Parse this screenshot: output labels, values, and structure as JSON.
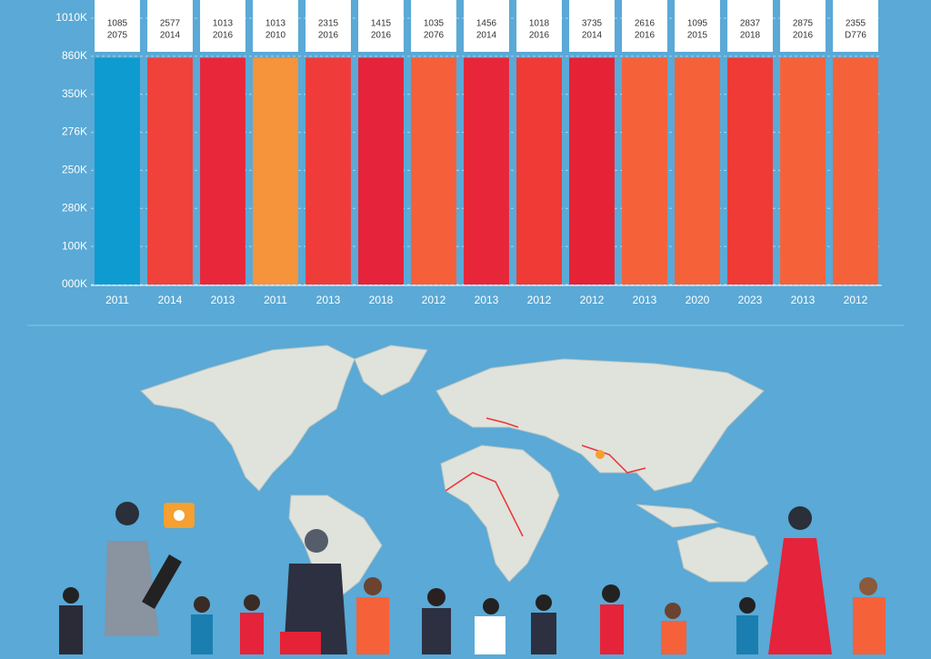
{
  "chart_data": {
    "type": "bar",
    "categories": [
      "2011",
      "2014",
      "2013",
      "2011",
      "2013",
      "2018",
      "2012",
      "2013",
      "2012",
      "2012",
      "2013",
      "2020",
      "2023",
      "2013",
      "2012"
    ],
    "values": [
      860000,
      860000,
      860000,
      860000,
      860000,
      860000,
      860000,
      860000,
      860000,
      860000,
      860000,
      860000,
      860000,
      860000,
      860000
    ],
    "bar_labels": [
      [
        "1085",
        "2075"
      ],
      [
        "2577",
        "2014"
      ],
      [
        "1013",
        "2016"
      ],
      [
        "1013",
        "2010"
      ],
      [
        "2315",
        "2016"
      ],
      [
        "1415",
        "2016"
      ],
      [
        "1035",
        "2076"
      ],
      [
        "1456",
        "2014"
      ],
      [
        "1018",
        "2016"
      ],
      [
        "3735",
        "2014"
      ],
      [
        "2616",
        "2016"
      ],
      [
        "1095",
        "2015"
      ],
      [
        "2837",
        "2018"
      ],
      [
        "2875",
        "2016"
      ],
      [
        "2355",
        "D776"
      ]
    ],
    "colors": [
      "#0e9bcf",
      "#f0413a",
      "#e8283a",
      "#f5943a",
      "#ef3c3a",
      "#e5233a",
      "#f5603a",
      "#e8263a",
      "#ef3a36",
      "#e52236",
      "#f5623a",
      "#f5623a",
      "#ef3a36",
      "#f5623a",
      "#f5623a"
    ],
    "y_axis_labels": [
      "1010K",
      "860K",
      "350K",
      "276K",
      "250K",
      "280K",
      "100K",
      "000K"
    ],
    "ylim": [
      0,
      1010000
    ],
    "grid": true
  }
}
